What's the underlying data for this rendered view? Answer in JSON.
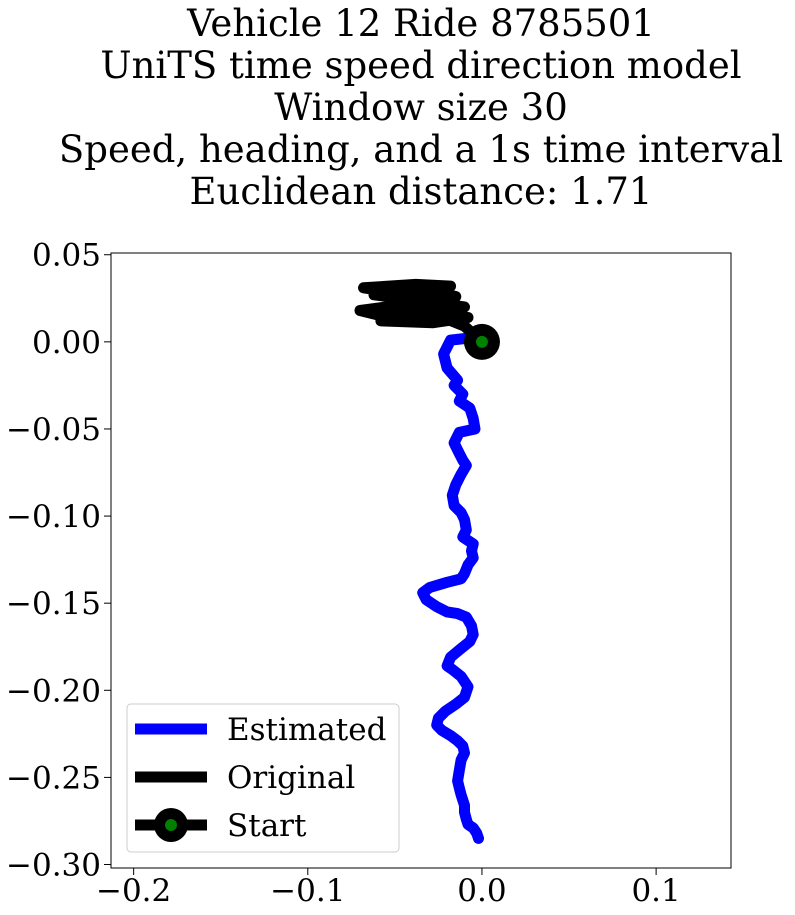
{
  "chart_data": {
    "type": "line",
    "title_lines": [
      "Vehicle 12 Ride 8785501",
      "UniTS time speed direction model",
      "Window size 30",
      "Speed, heading, and a 1s time interval",
      "Euclidean distance: 1.71"
    ],
    "xlabel": "",
    "ylabel": "",
    "xlim": [
      -0.213,
      0.143
    ],
    "ylim": [
      -0.302,
      0.051
    ],
    "xticks": [
      -0.2,
      -0.1,
      0.0,
      0.1
    ],
    "xtick_labels": [
      "−0.2",
      "−0.1",
      "0.0",
      "0.1"
    ],
    "yticks": [
      0.05,
      0.0,
      -0.05,
      -0.1,
      -0.15,
      -0.2,
      -0.25,
      -0.3
    ],
    "ytick_labels": [
      "0.05",
      "0.00",
      "−0.05",
      "−0.10",
      "−0.15",
      "−0.20",
      "−0.25",
      "−0.30"
    ],
    "grid": false,
    "legend_position": "lower-left",
    "series": [
      {
        "name": "Estimated",
        "color": "#0000ff",
        "x": [
          0.0,
          -0.018,
          -0.022,
          -0.02,
          -0.014,
          -0.016,
          -0.011,
          -0.013,
          -0.007,
          -0.005,
          -0.004,
          -0.013,
          -0.016,
          -0.013,
          -0.011,
          -0.009,
          -0.012,
          -0.015,
          -0.017,
          -0.016,
          -0.012,
          -0.01,
          -0.009,
          -0.011,
          -0.005,
          -0.006,
          -0.005,
          -0.008,
          -0.01,
          -0.012,
          -0.02,
          -0.03,
          -0.034,
          -0.032,
          -0.026,
          -0.02,
          -0.014,
          -0.009,
          -0.006,
          -0.005,
          -0.007,
          -0.012,
          -0.018,
          -0.02,
          -0.017,
          -0.012,
          -0.008,
          -0.01,
          -0.015,
          -0.021,
          -0.025,
          -0.026,
          -0.023,
          -0.018,
          -0.014,
          -0.011,
          -0.01,
          -0.012,
          -0.013,
          -0.014,
          -0.013,
          -0.012,
          -0.011,
          -0.01,
          -0.01,
          -0.009,
          -0.008,
          -0.005,
          -0.003,
          -0.002
        ],
        "y": [
          0.003,
          0.001,
          -0.007,
          -0.015,
          -0.022,
          -0.025,
          -0.03,
          -0.034,
          -0.038,
          -0.044,
          -0.05,
          -0.052,
          -0.058,
          -0.064,
          -0.068,
          -0.071,
          -0.076,
          -0.082,
          -0.088,
          -0.094,
          -0.098,
          -0.102,
          -0.108,
          -0.112,
          -0.116,
          -0.12,
          -0.124,
          -0.128,
          -0.133,
          -0.136,
          -0.138,
          -0.141,
          -0.144,
          -0.148,
          -0.152,
          -0.155,
          -0.156,
          -0.158,
          -0.163,
          -0.168,
          -0.172,
          -0.176,
          -0.181,
          -0.186,
          -0.188,
          -0.192,
          -0.198,
          -0.204,
          -0.208,
          -0.212,
          -0.216,
          -0.22,
          -0.223,
          -0.226,
          -0.229,
          -0.232,
          -0.236,
          -0.24,
          -0.246,
          -0.252,
          -0.256,
          -0.26,
          -0.263,
          -0.266,
          -0.27,
          -0.274,
          -0.277,
          -0.279,
          -0.282,
          -0.285
        ]
      },
      {
        "name": "Original",
        "color": "#000000",
        "x": [
          0.0,
          -0.01,
          -0.02,
          -0.035,
          -0.055,
          -0.07,
          -0.05,
          -0.025,
          -0.04,
          -0.06,
          -0.03,
          -0.015,
          -0.045,
          -0.065,
          -0.035,
          -0.02,
          -0.05,
          -0.07,
          -0.04,
          -0.025,
          -0.055,
          -0.068,
          -0.038,
          -0.018,
          -0.048,
          -0.062,
          -0.03,
          -0.01,
          -0.04,
          -0.058,
          -0.028,
          -0.008,
          -0.035,
          -0.05,
          -0.025,
          -0.045,
          -0.06,
          -0.032,
          -0.015,
          -0.042
        ],
        "y": [
          0.0,
          0.009,
          0.013,
          0.014,
          0.016,
          0.018,
          0.02,
          0.023,
          0.027,
          0.029,
          0.03,
          0.026,
          0.021,
          0.018,
          0.017,
          0.015,
          0.013,
          0.018,
          0.022,
          0.025,
          0.029,
          0.031,
          0.033,
          0.032,
          0.03,
          0.027,
          0.023,
          0.02,
          0.016,
          0.012,
          0.011,
          0.014,
          0.019,
          0.024,
          0.028,
          0.031,
          0.028,
          0.022,
          0.017,
          0.013
        ]
      },
      {
        "name": "Start",
        "color": "#000000",
        "marker_face": "#008000",
        "x": [
          0.0
        ],
        "y": [
          0.0
        ]
      }
    ]
  }
}
